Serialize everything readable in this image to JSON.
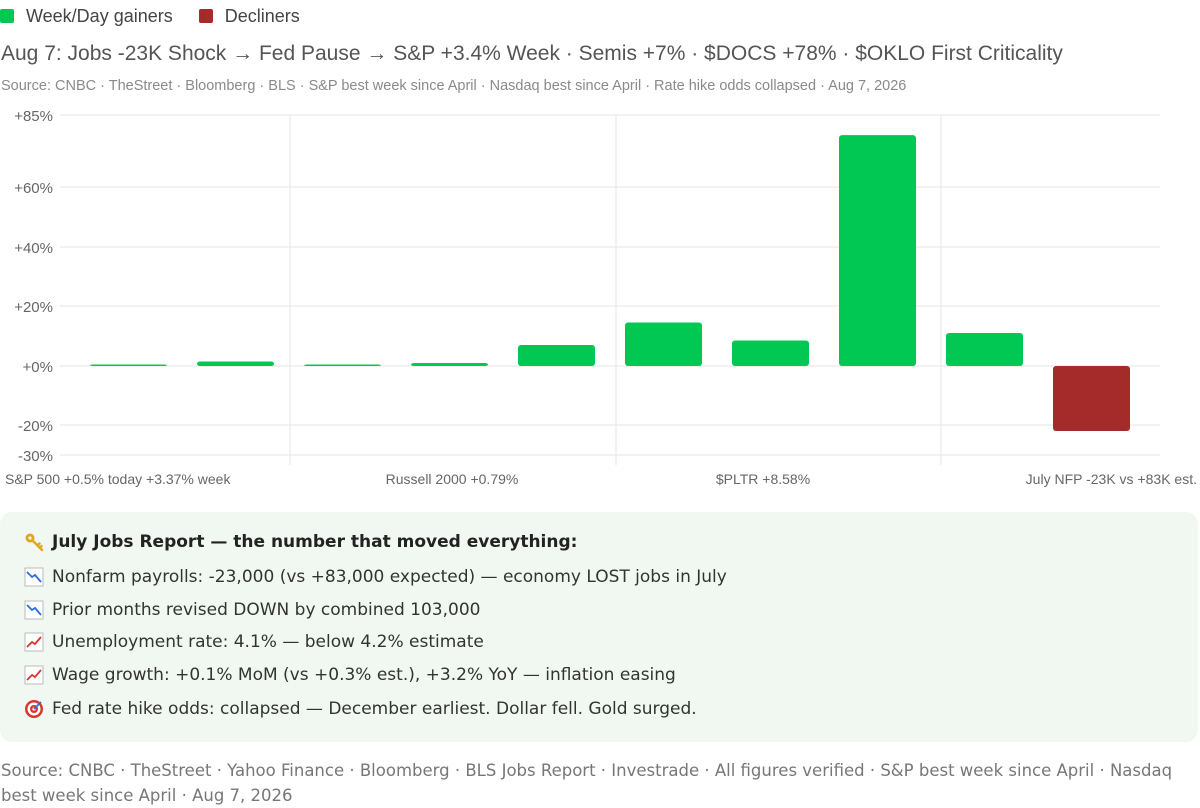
{
  "legend": {
    "gainers_label": "Week/Day gainers",
    "decliners_label": "Decliners"
  },
  "colors": {
    "gainer": "#00c853",
    "decliner": "#a52a2a"
  },
  "header": {
    "title": "Aug 7: Jobs -23K Shock → Fed Pause → S&P +3.4% Week · Semis +7% · $DOCS +78% · $OKLO First Criticality",
    "subtitle": "Source: CNBC · TheStreet · Bloomberg · BLS · S&P best week since April · Nasdaq best since April · Rate hike odds collapsed · Aug 7, 2026"
  },
  "chart_data": {
    "type": "bar",
    "y_tick_labels": [
      "+85%",
      "+60%",
      "+40%",
      "+20%",
      "+0%",
      "-20%",
      "-30%"
    ],
    "y_ticks": [
      85,
      60,
      40,
      20,
      0,
      -20,
      -30
    ],
    "ylim": [
      -30,
      85
    ],
    "grid": true,
    "legend_position": "top-left",
    "x_tick_labels": [
      "S&P 500 +0.5% today +3.37% week",
      "Russell 2000 +0.79%",
      "$PLTR +8.58%",
      "July NFP -23K vs +83K est."
    ],
    "values": [
      0.5,
      1.5,
      0.5,
      1.0,
      7.0,
      14.5,
      8.5,
      78.0,
      11.0,
      -22.0
    ],
    "series_colors": [
      "gainer",
      "gainer",
      "gainer",
      "gainer",
      "gainer",
      "gainer",
      "gainer",
      "gainer",
      "gainer",
      "decliner"
    ]
  },
  "jobs_card": {
    "title": "July Jobs Report — the number that moved everything:",
    "title_icon": "key-icon",
    "items": [
      {
        "icon": "chart-decreasing-icon",
        "text": "Nonfarm payrolls: -23,000 (vs +83,000 expected) — economy LOST jobs in July"
      },
      {
        "icon": "chart-decreasing-icon",
        "text": "Prior months revised DOWN by combined 103,000"
      },
      {
        "icon": "chart-increasing-icon",
        "text": "Unemployment rate: 4.1% — below 4.2% estimate"
      },
      {
        "icon": "chart-increasing-icon",
        "text": "Wage growth: +0.1% MoM (vs +0.3% est.), +3.2% YoY — inflation easing"
      },
      {
        "icon": "target-icon",
        "text": "Fed rate hike odds: collapsed — December earliest. Dollar fell. Gold surged."
      }
    ]
  },
  "footer": {
    "text": "Source: CNBC · TheStreet · Yahoo Finance · Bloomberg · BLS Jobs Report · Investrade · All figures verified · S&P best week since April · Nasdaq best week since April · Aug 7, 2026"
  }
}
